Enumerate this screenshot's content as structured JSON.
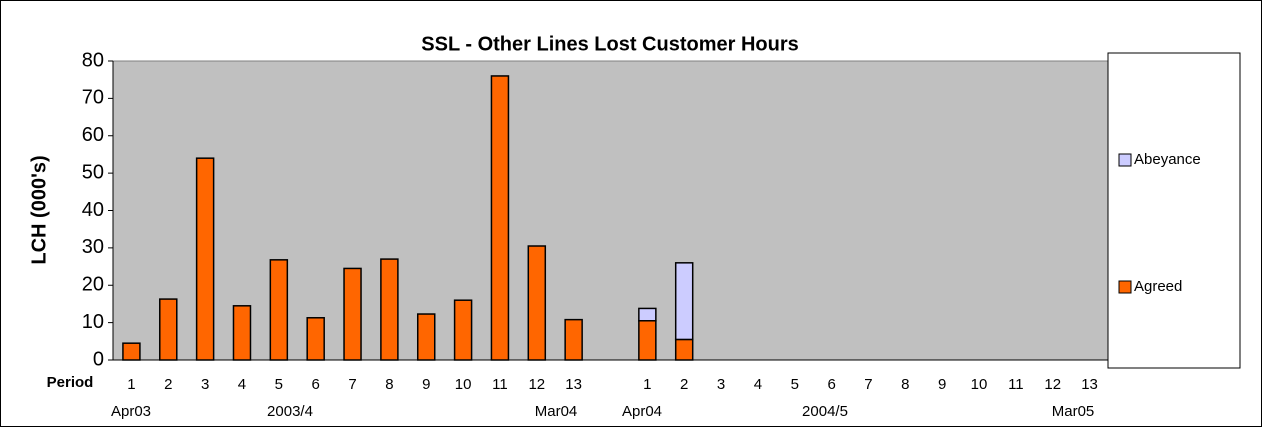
{
  "chart_data": {
    "type": "stacked_bar",
    "title": "SSL - Other Lines Lost Customer Hours",
    "y_label": "LCH (000's)",
    "x_label": "Period",
    "categories": [
      "1",
      "2",
      "3",
      "4",
      "5",
      "6",
      "7",
      "8",
      "9",
      "10",
      "11",
      "12",
      "13",
      null,
      "1",
      "2",
      "3",
      "4",
      "5",
      "6",
      "7",
      "8",
      "9",
      "10",
      "11",
      "12",
      "13"
    ],
    "group_labels": [
      "Apr03",
      "2003/4",
      "Mar04",
      "Apr04",
      "2004/5",
      "Mar05"
    ],
    "series": [
      {
        "name": "Agreed",
        "color": "#ff6600",
        "values": [
          4.5,
          16.3,
          54,
          14.5,
          26.8,
          11.3,
          24.5,
          27,
          12.3,
          16,
          76,
          30.5,
          10.8,
          null,
          10.5,
          5.5,
          null,
          null,
          null,
          null,
          null,
          null,
          null,
          null,
          null,
          null,
          null
        ]
      },
      {
        "name": "Abeyance",
        "color": "#ccccff",
        "values": [
          null,
          null,
          null,
          null,
          null,
          null,
          null,
          null,
          null,
          null,
          null,
          null,
          null,
          null,
          3.3,
          20.5,
          null,
          null,
          null,
          null,
          null,
          null,
          null,
          null,
          null,
          null,
          null
        ]
      }
    ],
    "ylim": [
      0,
      80
    ],
    "yticks": [
      0,
      10,
      20,
      30,
      40,
      50,
      60,
      70,
      80
    ],
    "plot_background": "#c0c0c0",
    "legend": "right"
  }
}
